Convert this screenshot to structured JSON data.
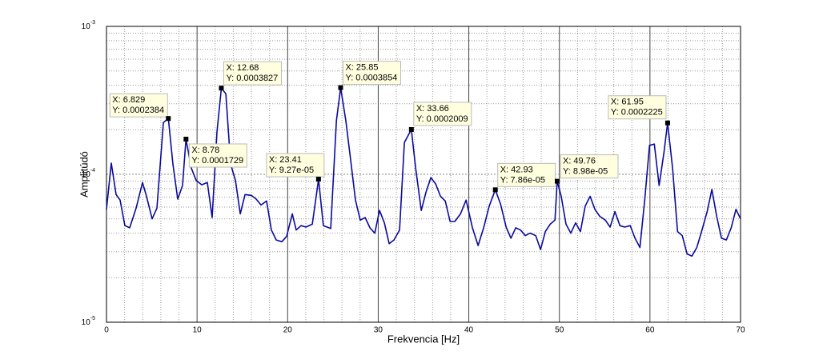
{
  "chart_data": {
    "type": "line",
    "xlabel": "Frekvencia [Hz]",
    "ylabel": "Amplitúdó",
    "ylog": true,
    "grid": true,
    "color": "#0a0a9e",
    "xlim": [
      0,
      70
    ],
    "ylim": [
      1e-05,
      0.001
    ],
    "xticks": [
      0,
      10,
      20,
      30,
      40,
      50,
      60,
      70
    ],
    "xminorticks": [
      2,
      4,
      6,
      8,
      12,
      14,
      16,
      18,
      22,
      24,
      26,
      28,
      32,
      34,
      36,
      38,
      42,
      44,
      46,
      48,
      52,
      54,
      56,
      58,
      62,
      64,
      66,
      68
    ],
    "yticks": [
      {
        "value": 1e-05,
        "label": "10",
        "exponent": "-5"
      },
      {
        "value": 0.0001,
        "label": "10",
        "exponent": "-4"
      },
      {
        "value": 0.001,
        "label": "10",
        "exponent": "-3"
      }
    ],
    "yminorticks": [
      2e-05,
      3e-05,
      4e-05,
      5e-05,
      6e-05,
      7e-05,
      8e-05,
      9e-05,
      0.0002,
      0.0003,
      0.0004,
      0.0005,
      0.0006,
      0.0007,
      0.0008,
      0.0009
    ],
    "x": [
      0,
      0.53,
      1.06,
      1.5,
      2.03,
      2.56,
      3.27,
      3.98,
      4.42,
      5.04,
      5.57,
      6.28,
      6.829,
      7.34,
      7.87,
      8.4,
      8.78,
      9.37,
      9.9,
      10.52,
      11.14,
      11.67,
      12.2,
      12.68,
      13.18,
      13.71,
      14.24,
      14.77,
      15.3,
      16.0,
      16.53,
      17.06,
      17.68,
      18.21,
      18.74,
      19.36,
      19.89,
      20.51,
      20.95,
      21.48,
      22.02,
      22.72,
      23.41,
      23.94,
      24.76,
      25.38,
      25.85,
      26.43,
      26.96,
      27.49,
      28.02,
      28.56,
      29.09,
      29.62,
      30.15,
      30.68,
      31.21,
      31.74,
      32.36,
      32.89,
      33.66,
      34.13,
      34.75,
      35.28,
      35.81,
      36.34,
      36.87,
      37.4,
      37.93,
      38.46,
      39.08,
      39.7,
      40.4,
      41.03,
      41.64,
      42.26,
      42.93,
      43.5,
      44.12,
      44.65,
      45.18,
      45.71,
      46.24,
      46.77,
      47.39,
      47.92,
      48.45,
      48.98,
      49.51,
      49.76,
      50.2,
      50.73,
      51.26,
      51.79,
      52.32,
      52.85,
      53.39,
      53.92,
      54.45,
      55.07,
      55.6,
      56.13,
      56.68,
      57.2,
      57.82,
      58.35,
      58.89,
      59.42,
      59.95,
      60.48,
      61.01,
      61.54,
      61.95,
      62.5,
      63.04,
      63.57,
      64.1,
      64.63,
      65.17,
      65.7,
      66.31,
      66.84,
      67.37,
      67.9,
      68.44,
      68.97,
      69.5,
      70
    ],
    "values": [
      5.78e-05,
      0.000119,
      7.3e-05,
      6.7e-05,
      4.5e-05,
      4.35e-05,
      5.9e-05,
      8.8e-05,
      7.1e-05,
      5e-05,
      5.9e-05,
      0.000224,
      0.0002384,
      0.000117,
      6.8e-05,
      8.4e-05,
      0.0001729,
      0.00011,
      9.1e-05,
      8.5e-05,
      8.8e-05,
      5.1e-05,
      0.000193,
      0.0003827,
      0.00035,
      0.000117,
      9.1e-05,
      5.4e-05,
      7.3e-05,
      7.2e-05,
      6.8e-05,
      6.2e-05,
      6.6e-05,
      4.2e-05,
      3.6e-05,
      3.5e-05,
      3.8e-05,
      5.4e-05,
      4.2e-05,
      4.5e-05,
      4.4e-05,
      4.6e-05,
      9.27e-05,
      4.5e-05,
      4.3e-05,
      0.00023,
      0.0003854,
      0.00023,
      0.000125,
      6.7e-05,
      4.9e-05,
      5.1e-05,
      4.35e-05,
      4e-05,
      5.7e-05,
      4.7e-05,
      3.4e-05,
      3.6e-05,
      4.2e-05,
      0.000164,
      0.0002009,
      0.00011,
      5.7e-05,
      7.6e-05,
      9.5e-05,
      8.6e-05,
      7.1e-05,
      6.6e-05,
      4.8e-05,
      4.8e-05,
      5.4e-05,
      6.7e-05,
      4.35e-05,
      3.3e-05,
      4.35e-05,
      6.1e-05,
      7.86e-05,
      6.3e-05,
      4.4e-05,
      3.7e-05,
      4.35e-05,
      4.2e-05,
      3.85e-05,
      4e-05,
      3.85e-05,
      3.1e-05,
      4.1e-05,
      4.6e-05,
      4.9e-05,
      8.98e-05,
      7.1e-05,
      4.6e-05,
      4e-05,
      4.7e-05,
      4.1e-05,
      6.1e-05,
      7.1e-05,
      5.8e-05,
      5.2e-05,
      4.9e-05,
      4.4e-05,
      5.6e-05,
      4.5e-05,
      4.4e-05,
      4.5e-05,
      3.7e-05,
      3.2e-05,
      6.7e-05,
      0.000157,
      0.00016,
      8.4e-05,
      0.00014,
      0.0002225,
      0.00011,
      4.1e-05,
      3.85e-05,
      2.9e-05,
      2.8e-05,
      3.2e-05,
      4.1e-05,
      5.6e-05,
      7.9e-05,
      5.2e-05,
      3.7e-05,
      3.6e-05,
      4.35e-05,
      5.8e-05,
      5e-05
    ],
    "datatips": [
      {
        "x": 6.829,
        "y": 0.0002384,
        "text": [
          "X: 6.829",
          "Y: 0.0002384"
        ]
      },
      {
        "x": 8.78,
        "y": 0.0001729,
        "text": [
          "X: 8.78",
          "Y: 0.0001729"
        ]
      },
      {
        "x": 12.68,
        "y": 0.0003827,
        "text": [
          "X: 12.68",
          "Y: 0.0003827"
        ]
      },
      {
        "x": 23.41,
        "y": 9.27e-05,
        "text": [
          "X: 23.41",
          "Y: 9.27e-05"
        ]
      },
      {
        "x": 25.85,
        "y": 0.0003854,
        "text": [
          "X: 25.85",
          "Y: 0.0003854"
        ]
      },
      {
        "x": 33.66,
        "y": 0.0002009,
        "text": [
          "X: 33.66",
          "Y: 0.0002009"
        ]
      },
      {
        "x": 42.93,
        "y": 7.86e-05,
        "text": [
          "X: 42.93",
          "Y: 7.86e-05"
        ]
      },
      {
        "x": 49.76,
        "y": 8.98e-05,
        "text": [
          "X: 49.76",
          "Y: 8.98e-05"
        ]
      },
      {
        "x": 61.95,
        "y": 0.0002225,
        "text": [
          "X: 61.95",
          "Y: 0.0002225"
        ]
      }
    ]
  }
}
